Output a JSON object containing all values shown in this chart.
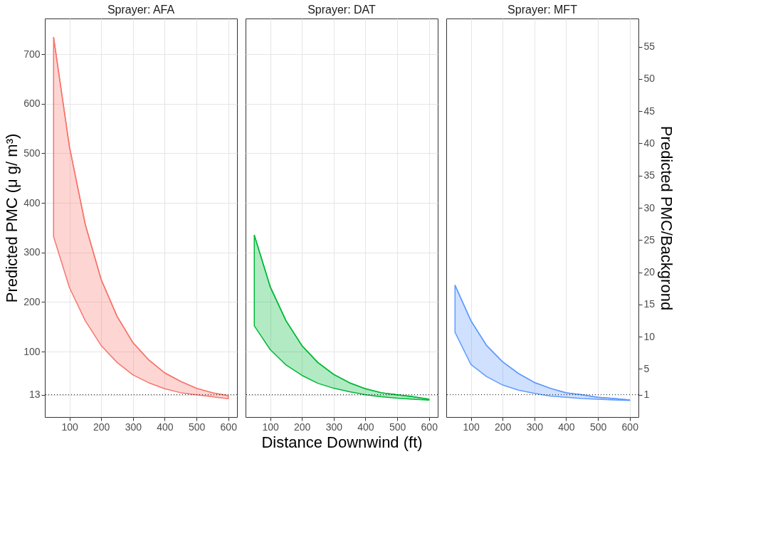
{
  "chart_data": [
    {
      "type": "line",
      "title": "Sprayer: AFA",
      "ylabel": "Predicted PMC (μ g/ m³)",
      "x": [
        50,
        100,
        150,
        200,
        250,
        300,
        350,
        400,
        450,
        500,
        550,
        600
      ],
      "xlim": [
        22.5,
        627.5
      ],
      "xticks": [
        100,
        200,
        300,
        400,
        500,
        600
      ],
      "ylim": [
        -32,
        772
      ],
      "yticks": [
        13,
        100,
        200,
        300,
        400,
        500,
        600,
        700
      ],
      "grid": true,
      "series": [
        {
          "color": "#f8766d",
          "values": [
            734,
            513,
            356,
            245,
            171,
            118,
            83,
            57,
            40,
            26,
            17,
            11
          ],
          "upper": [
            734,
            513,
            356,
            245,
            171,
            118,
            83,
            57,
            40,
            26,
            17,
            11
          ],
          "lower": [
            332,
            229,
            162,
            112,
            78,
            53,
            37,
            25,
            17,
            13,
            9,
            5
          ]
        }
      ],
      "ref_lines": [
        {
          "axis": "y",
          "value": 13,
          "line_style": "dotted",
          "color": "#000000"
        }
      ]
    },
    {
      "type": "line",
      "title": "Sprayer: DAT",
      "xlabel": "Distance Downwind (ft)",
      "x": [
        50,
        100,
        150,
        200,
        250,
        300,
        350,
        400,
        450,
        500,
        550,
        600
      ],
      "xlim": [
        22.5,
        627.5
      ],
      "xticks": [
        100,
        200,
        300,
        400,
        500,
        600
      ],
      "ylim": [
        -32,
        772
      ],
      "yticks": [
        13,
        100,
        200,
        300,
        400,
        500,
        600,
        700
      ],
      "grid": true,
      "tick_labels": "x",
      "series": [
        {
          "color": "#00ba38",
          "values": [
            335,
            231,
            162,
            112,
            78,
            54,
            37,
            25,
            17,
            13,
            9,
            4
          ],
          "upper": [
            335,
            231,
            162,
            112,
            78,
            54,
            37,
            25,
            17,
            13,
            9,
            4
          ],
          "lower": [
            152,
            104,
            73,
            52,
            36,
            26,
            19,
            13,
            9,
            6,
            4,
            2
          ]
        }
      ],
      "ref_lines": [
        {
          "axis": "y",
          "value": 13,
          "line_style": "dotted",
          "color": "#000000"
        }
      ]
    },
    {
      "type": "line",
      "title": "Sprayer: MFT",
      "y2label": "Predicted PMC/Backgrond",
      "x": [
        50,
        100,
        150,
        200,
        250,
        300,
        350,
        400,
        450,
        500,
        550,
        600
      ],
      "xlim": [
        22.5,
        627.5
      ],
      "xticks": [
        100,
        200,
        300,
        400,
        500,
        600
      ],
      "y2lim": [
        -2.46,
        59.38
      ],
      "y2ticks": [
        1,
        5,
        10,
        15,
        20,
        25,
        30,
        35,
        40,
        45,
        50,
        55
      ],
      "grid": "x",
      "series": [
        {
          "color": "#619cff",
          "axis": "y2",
          "values": [
            18.0,
            12.5,
            8.6,
            6.1,
            4.3,
            2.9,
            2.0,
            1.3,
            1.0,
            0.6,
            0.4,
            0.2
          ],
          "upper": [
            18.0,
            12.5,
            8.6,
            6.1,
            4.3,
            2.9,
            2.0,
            1.3,
            1.0,
            0.6,
            0.4,
            0.2
          ],
          "lower": [
            10.7,
            5.7,
            3.8,
            2.5,
            1.7,
            1.2,
            0.8,
            0.6,
            0.4,
            0.3,
            0.2,
            0.1
          ]
        }
      ],
      "ref_lines": [
        {
          "axis": "y2",
          "value": 1,
          "line_style": "dotted",
          "color": "#000000"
        }
      ]
    }
  ]
}
